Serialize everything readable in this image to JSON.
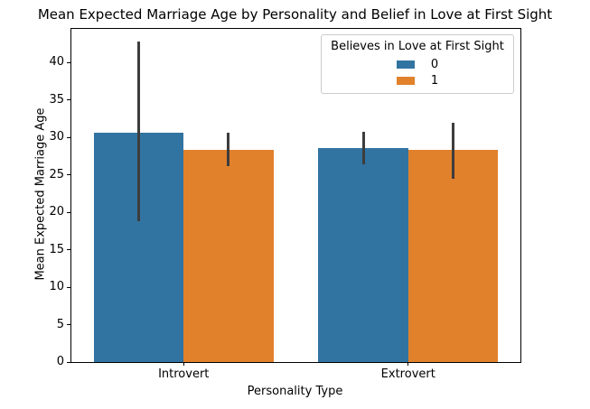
{
  "chart_data": {
    "type": "bar",
    "title": "Mean Expected Marriage Age by Personality and Belief in Love at First Sight",
    "xlabel": "Personality Type",
    "ylabel": "Mean Expected Marriage Age",
    "categories": [
      "Introvert",
      "Extrovert"
    ],
    "legend": {
      "title": "Believes in Love at First Sight",
      "position": "upper right"
    },
    "series": [
      {
        "name": "0",
        "color": "#3274a1",
        "values": [
          30.6,
          28.6
        ],
        "ci": [
          [
            18.8,
            42.8
          ],
          [
            26.4,
            30.7
          ]
        ]
      },
      {
        "name": "1",
        "color": "#e1812c",
        "values": [
          28.4,
          28.3
        ],
        "ci": [
          [
            26.2,
            30.6
          ],
          [
            24.5,
            31.9
          ]
        ]
      }
    ],
    "errorbar_color": "#3d3d3d",
    "ylim": [
      0,
      44.5
    ],
    "yticks": [
      0,
      5,
      10,
      15,
      20,
      25,
      30,
      35,
      40
    ],
    "grid": false,
    "bar_width_frac": 0.4
  }
}
